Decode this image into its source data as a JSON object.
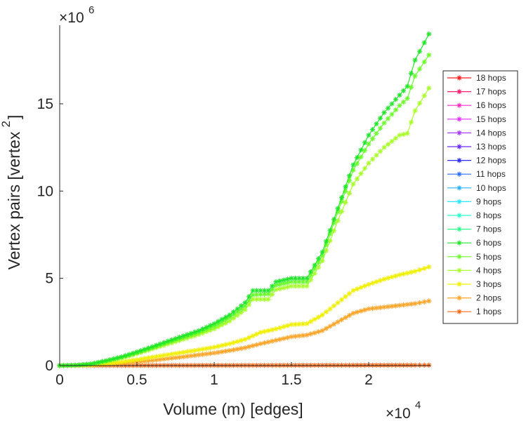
{
  "chart_data": {
    "type": "line",
    "title": "",
    "xlabel": "Volume (m) [edges]",
    "ylabel": "Vertex pairs [vertex",
    "ylabel_superscript": "2",
    "ylabel_suffix": "]",
    "x_multiplier": {
      "base": "×10",
      "exponent": "4"
    },
    "y_multiplier": {
      "base": "×10",
      "exponent": "6"
    },
    "xlim": [
      0,
      24000
    ],
    "ylim": [
      0,
      19500000
    ],
    "xticks": [
      0,
      5000,
      10000,
      15000,
      20000
    ],
    "xtick_labels": [
      "0",
      "0.5",
      "1",
      "1.5",
      "2"
    ],
    "yticks": [
      0,
      5000000,
      10000000,
      15000000
    ],
    "ytick_labels": [
      "0",
      "5",
      "10",
      "15"
    ],
    "legend_position": "right-outside",
    "marker": "asterisk",
    "series": [
      {
        "name": "18 hops",
        "color": "#ff1a1a",
        "x": [],
        "y": []
      },
      {
        "name": "17 hops",
        "color": "#ff1a6e",
        "x": [],
        "y": []
      },
      {
        "name": "16 hops",
        "color": "#ff2ac8",
        "x": [],
        "y": []
      },
      {
        "name": "15 hops",
        "color": "#e62aff",
        "x": [],
        "y": []
      },
      {
        "name": "14 hops",
        "color": "#a83aff",
        "x": [],
        "y": []
      },
      {
        "name": "13 hops",
        "color": "#6a2aff",
        "x": [],
        "y": []
      },
      {
        "name": "12 hops",
        "color": "#2a2aff",
        "x": [],
        "y": []
      },
      {
        "name": "11 hops",
        "color": "#2a6eff",
        "x": [],
        "y": []
      },
      {
        "name": "10 hops",
        "color": "#2ab0ff",
        "x": [],
        "y": []
      },
      {
        "name": "9 hops",
        "color": "#2ae6ff",
        "x": [],
        "y": []
      },
      {
        "name": "8 hops",
        "color": "#2affc8",
        "x": [],
        "y": []
      },
      {
        "name": "7 hops",
        "color": "#2aff8a",
        "x": [],
        "y": []
      },
      {
        "name": "6 hops",
        "color": "#22e62a",
        "x": [
          0,
          1000,
          2000,
          3000,
          4000,
          5000,
          6000,
          7000,
          8000,
          9000,
          10000,
          11000,
          12000,
          12500,
          13500,
          14000,
          15000,
          16000,
          17000,
          18000,
          19000,
          20000,
          21000,
          22000,
          22500,
          23000,
          23900
        ],
        "y": [
          0,
          20000,
          90000,
          280000,
          500000,
          780000,
          1080000,
          1400000,
          1700000,
          2000000,
          2400000,
          2900000,
          3600000,
          4300000,
          4300000,
          4800000,
          5000000,
          5000000,
          6500000,
          9000000,
          11500000,
          13200000,
          14500000,
          15500000,
          16000000,
          17500000,
          19000000
        ]
      },
      {
        "name": "5 hops",
        "color": "#6aff2a",
        "x": [
          0,
          1000,
          2000,
          3000,
          4000,
          5000,
          6000,
          7000,
          8000,
          9000,
          10000,
          11000,
          12000,
          12500,
          13500,
          14000,
          15000,
          16000,
          17000,
          18000,
          19000,
          20000,
          21000,
          22000,
          22500,
          23000,
          23900
        ],
        "y": [
          0,
          18000,
          85000,
          260000,
          470000,
          730000,
          1020000,
          1320000,
          1600000,
          1900000,
          2250000,
          2750000,
          3400000,
          4050000,
          4100000,
          4600000,
          4800000,
          4800000,
          6300000,
          8800000,
          11200000,
          12700000,
          13900000,
          14900000,
          15300000,
          16600000,
          17800000
        ]
      },
      {
        "name": "4 hops",
        "color": "#a8ff2a",
        "x": [
          0,
          1000,
          2000,
          3000,
          4000,
          5000,
          6000,
          7000,
          8000,
          9000,
          10000,
          11000,
          12000,
          12500,
          13500,
          14000,
          15000,
          16000,
          17000,
          18000,
          19000,
          20000,
          21000,
          22000,
          22500,
          23000,
          23900
        ],
        "y": [
          0,
          15000,
          75000,
          230000,
          430000,
          680000,
          950000,
          1230000,
          1500000,
          1780000,
          2100000,
          2550000,
          3200000,
          3800000,
          3800000,
          4350000,
          4550000,
          4550000,
          6000000,
          8300000,
          10400000,
          11600000,
          12500000,
          13200000,
          13300000,
          14600000,
          15900000
        ]
      },
      {
        "name": "3 hops",
        "color": "#f0f000",
        "x": [
          0,
          1000,
          2000,
          3000,
          4000,
          5000,
          6000,
          7000,
          8000,
          9000,
          10000,
          11000,
          12000,
          13000,
          14000,
          15000,
          16000,
          17000,
          18000,
          19000,
          20000,
          21000,
          22000,
          23000,
          23900
        ],
        "y": [
          0,
          8000,
          40000,
          110000,
          210000,
          340000,
          480000,
          620000,
          760000,
          900000,
          1050000,
          1250000,
          1500000,
          1900000,
          2100000,
          2350000,
          2400000,
          2900000,
          3600000,
          4300000,
          4650000,
          4950000,
          5200000,
          5400000,
          5650000
        ]
      },
      {
        "name": "2 hops",
        "color": "#ffa52a",
        "x": [
          0,
          1000,
          2000,
          3000,
          4000,
          5000,
          6000,
          7000,
          8000,
          9000,
          10000,
          11000,
          12000,
          13000,
          14000,
          15000,
          16000,
          17000,
          18000,
          19000,
          20000,
          21000,
          22000,
          23000,
          23900
        ],
        "y": [
          0,
          5000,
          25000,
          70000,
          130000,
          210000,
          300000,
          400000,
          500000,
          610000,
          720000,
          860000,
          1020000,
          1250000,
          1450000,
          1650000,
          1750000,
          2000000,
          2500000,
          3000000,
          3250000,
          3350000,
          3450000,
          3550000,
          3700000
        ]
      },
      {
        "name": "1 hops",
        "color": "#ff6a1a",
        "x": [
          0,
          1000,
          2000,
          3000,
          4000,
          5000,
          6000,
          7000,
          8000,
          9000,
          10000,
          11000,
          12000,
          13000,
          14000,
          15000,
          16000,
          17000,
          18000,
          19000,
          20000,
          21000,
          22000,
          23000,
          23900
        ],
        "y": [
          0,
          1000,
          2000,
          3000,
          4000,
          5000,
          6000,
          7000,
          8000,
          9000,
          10000,
          11000,
          12000,
          13000,
          14000,
          15000,
          16000,
          17000,
          18000,
          19000,
          20000,
          21000,
          22000,
          23000,
          23900
        ]
      }
    ]
  }
}
